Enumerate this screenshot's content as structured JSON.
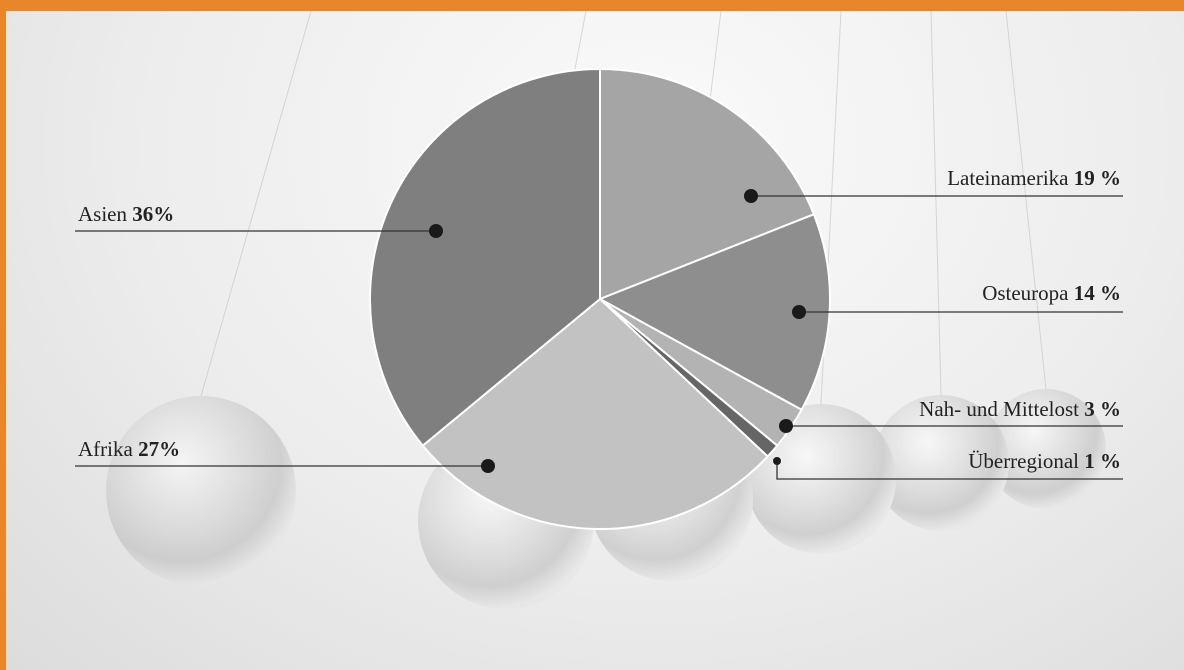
{
  "colors": {
    "accent_border": "#e8862a",
    "leader": "#333333",
    "dot": "#1a1a1a",
    "slice_edge": "#ffffff"
  },
  "chart_data": {
    "type": "pie",
    "title": "",
    "start_angle_deg": 0,
    "direction": "clockwise",
    "slices": [
      {
        "label": "Lateinamerika",
        "value": 19,
        "value_text": "19 %",
        "color": "#a5a5a5"
      },
      {
        "label": "Osteuropa",
        "value": 14,
        "value_text": "14 %",
        "color": "#8e8e8e"
      },
      {
        "label": "Nah- und Mittelost",
        "value": 3,
        "value_text": "3 %",
        "color": "#b3b3b3"
      },
      {
        "label": "Überregional",
        "value": 1,
        "value_text": "1 %",
        "color": "#666666"
      },
      {
        "label": "Afrika",
        "value": 27,
        "value_text": "27%",
        "color": "#c2c2c2"
      },
      {
        "label": "Asien",
        "value": 36,
        "value_text": "36%",
        "color": "#7f7f7f"
      }
    ]
  }
}
